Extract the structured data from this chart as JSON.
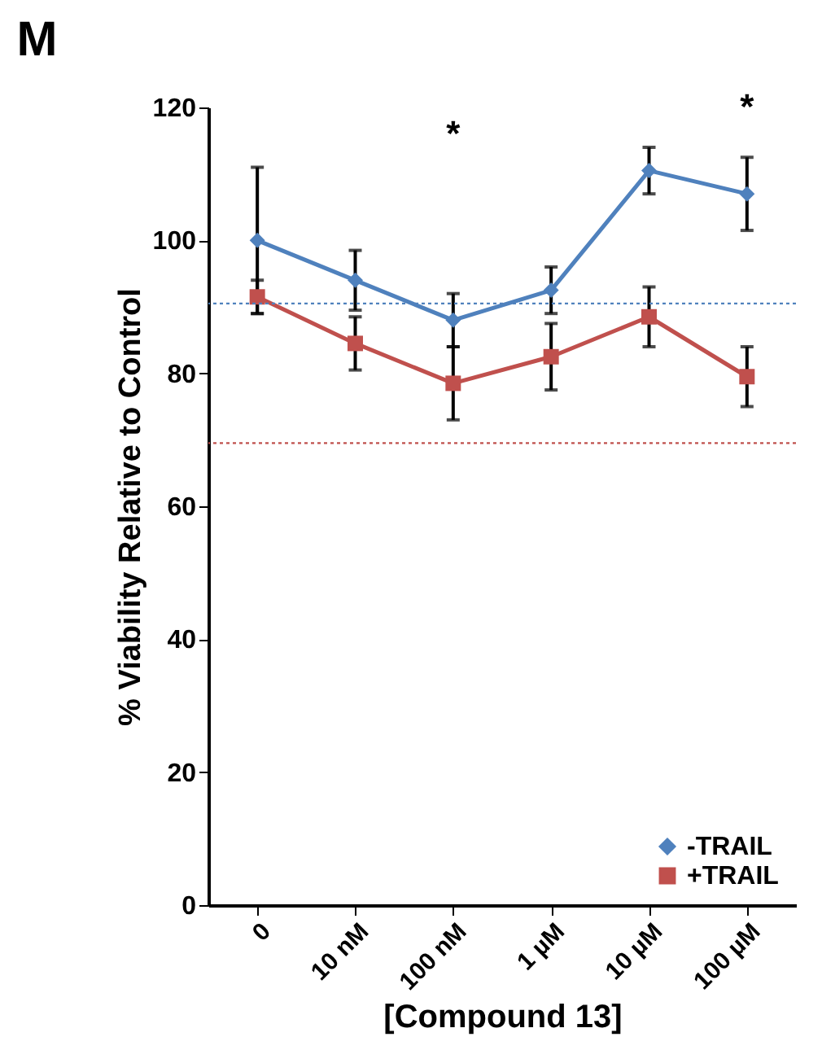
{
  "chart_data": {
    "type": "line",
    "title": "M",
    "xlabel": "[Compound 13]",
    "ylabel": "% Viability Relative to Control",
    "categories": [
      "0",
      "10 nM",
      "100 nM",
      "1 µM",
      "10 µM",
      "100 µM"
    ],
    "series": [
      {
        "name": "-TRAIL",
        "color": "#4f81bd",
        "marker": "diamond",
        "values": [
          100,
          94,
          88,
          92.5,
          110.5,
          107
        ],
        "errors": [
          11,
          4.5,
          4,
          3.5,
          3.5,
          5.5
        ]
      },
      {
        "name": "+TRAIL",
        "color": "#c0504d",
        "marker": "square",
        "values": [
          91.5,
          84.5,
          78.5,
          82.5,
          88.5,
          79.5
        ],
        "errors": [
          2.5,
          4,
          5.5,
          5,
          4.5,
          4.5
        ]
      }
    ],
    "ylim": [
      0,
      120
    ],
    "yticks": [
      0,
      20,
      40,
      60,
      80,
      100,
      120
    ],
    "ref_lines": [
      {
        "axis": "y",
        "value": 90.5,
        "color": "#4f81bd",
        "line_style": "dotted"
      },
      {
        "axis": "y",
        "value": 69.5,
        "color": "#c0504d",
        "line_style": "dotted"
      }
    ],
    "annotations": [
      "*",
      "*"
    ],
    "legend": "bottom right",
    "grid": false,
    "line_style": "solid"
  }
}
